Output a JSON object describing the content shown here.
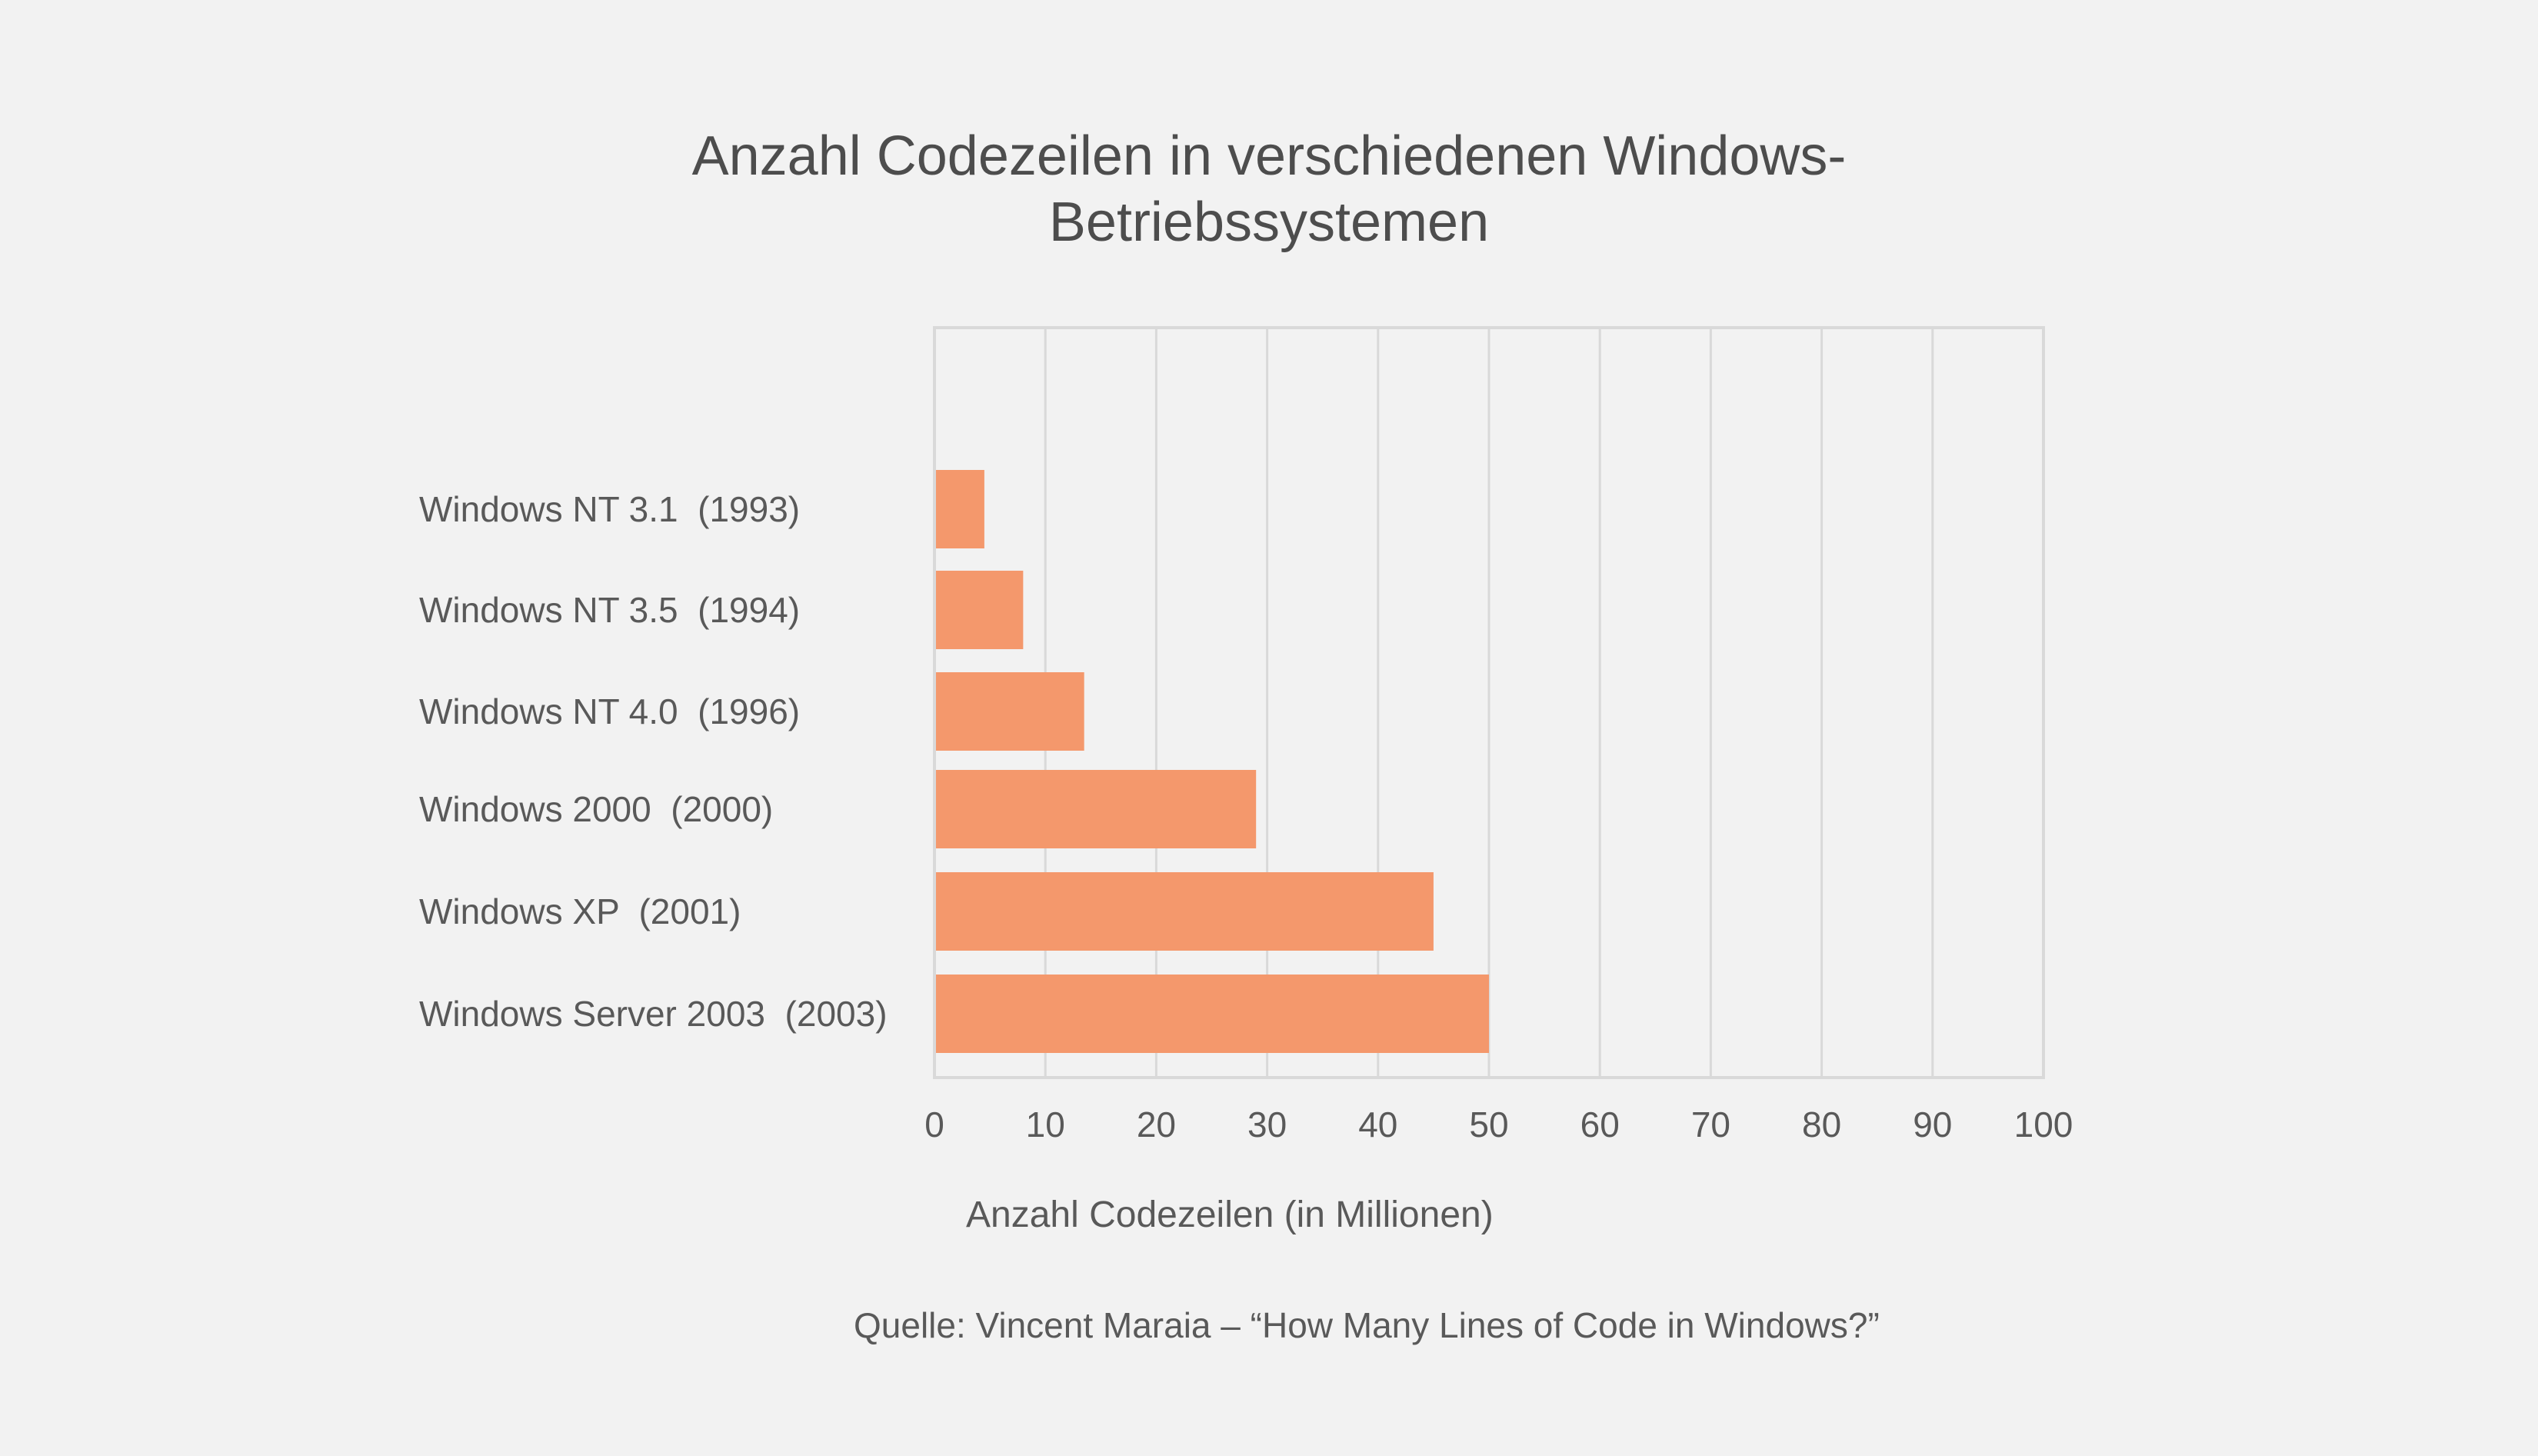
{
  "chart_data": {
    "type": "bar",
    "orientation": "horizontal",
    "title_lines": [
      "Anzahl Codezeilen in verschiedenen Windows-",
      "Betriebssystemen"
    ],
    "categories": [
      "Windows NT 3.1  (1993)",
      "Windows NT 3.5  (1994)",
      "Windows NT 4.0  (1996)",
      "Windows 2000  (2000)",
      "Windows XP  (2001)",
      "Windows Server 2003  (2003)"
    ],
    "values": [
      4.5,
      8,
      13.5,
      29,
      45,
      50
    ],
    "xlabel": "Anzahl Codezeilen (in Millionen)",
    "ylabel": "",
    "xlim": [
      0,
      100
    ],
    "xticks": [
      0,
      10,
      20,
      30,
      40,
      50,
      60,
      70,
      80,
      90,
      100
    ],
    "grid": true,
    "legend": "none",
    "bar_color": "#f4986c",
    "grid_color": "#d9d9d9",
    "source": "Quelle: Vincent Maraia – “How Many Lines of Code in Windows?”"
  }
}
